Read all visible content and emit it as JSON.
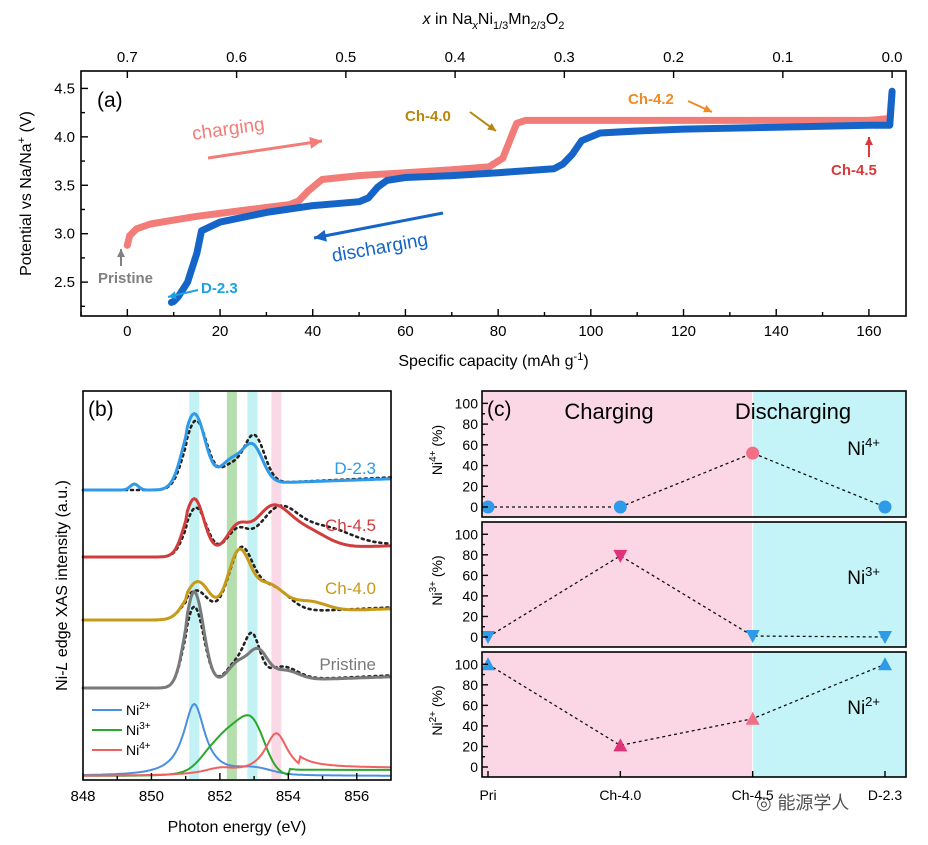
{
  "watermark": "能源学人",
  "chart_data": [
    {
      "panel": "(a)",
      "type": "line",
      "xlabel": "Specific capacity (mAh g",
      "xlabel_sup": "-1",
      "xlabel_end": ")",
      "ylabel": "Potential vs Na/Na",
      "ylabel_sup": "+",
      "ylabel_end": " (V)",
      "top_axis_label": {
        "x": "x",
        "in": " in Na",
        "sx": "x",
        "ni": "Ni",
        "s13": "1/3",
        "mn": "Mn",
        "s23": "2/3",
        "o": "O",
        "s2": "2"
      },
      "xlim": [
        -10,
        168
      ],
      "ylim": [
        2.15,
        4.68
      ],
      "xticks": [
        0,
        20,
        40,
        60,
        80,
        100,
        120,
        140,
        160
      ],
      "xtick_labels": [
        "0",
        "20",
        "40",
        "60",
        "80",
        "100",
        "120",
        "140",
        "160"
      ],
      "yticks": [
        2.5,
        3.0,
        3.5,
        4.0,
        4.5
      ],
      "ytick_labels": [
        "2.5",
        "3.0",
        "3.5",
        "4.0",
        "4.5"
      ],
      "top_xlim": [
        0.7,
        0.0
      ],
      "top_ticks": [
        0.7,
        0.6,
        0.5,
        0.4,
        0.3,
        0.2,
        0.1,
        0.0
      ],
      "top_tick_labels": [
        "0.7",
        "0.6",
        "0.5",
        "0.4",
        "0.3",
        "0.2",
        "0.1",
        "0.0"
      ],
      "series": [
        {
          "name": "charging",
          "color": "#f27c78",
          "x": [
            0,
            0.5,
            2,
            5,
            10,
            15,
            20,
            25,
            30,
            35,
            37,
            39,
            42,
            50,
            60,
            70,
            78,
            81,
            83,
            84,
            86,
            90,
            100,
            110,
            120,
            140,
            160,
            164.5,
            165
          ],
          "y": [
            2.88,
            2.98,
            3.05,
            3.1,
            3.14,
            3.18,
            3.21,
            3.24,
            3.27,
            3.3,
            3.34,
            3.44,
            3.56,
            3.6,
            3.63,
            3.66,
            3.69,
            3.78,
            4.02,
            4.14,
            4.17,
            4.17,
            4.17,
            4.17,
            4.17,
            4.17,
            4.17,
            4.19,
            4.47
          ]
        },
        {
          "name": "discharging",
          "color": "#1565c8",
          "x": [
            165,
            164.5,
            160,
            140,
            120,
            110,
            102,
            98,
            96,
            94,
            92,
            80,
            70,
            60,
            56,
            54,
            52,
            50,
            45,
            40,
            30,
            20,
            16,
            15,
            13,
            11,
            10,
            9.5
          ],
          "y": [
            4.47,
            4.12,
            4.12,
            4.1,
            4.08,
            4.06,
            4.04,
            3.96,
            3.82,
            3.72,
            3.67,
            3.63,
            3.6,
            3.58,
            3.55,
            3.48,
            3.37,
            3.33,
            3.31,
            3.29,
            3.22,
            3.12,
            3.03,
            2.8,
            2.5,
            2.35,
            2.3,
            2.29
          ]
        }
      ],
      "annotations": [
        {
          "text": "charging",
          "color": "#f27c78",
          "kind": "arrow-label"
        },
        {
          "text": "discharging",
          "color": "#1565c8",
          "kind": "arrow-label"
        },
        {
          "text": "Ch-4.0",
          "color": "#b8860b"
        },
        {
          "text": "Ch-4.2",
          "color": "#f08a24"
        },
        {
          "text": "Ch-4.5",
          "color": "#d63a3a"
        },
        {
          "text": "Pristine",
          "color": "#808080"
        },
        {
          "text": "D-2.3",
          "color": "#1ba1e2"
        }
      ]
    },
    {
      "panel": "(b)",
      "type": "line",
      "xlabel": "Photon energy (eV)",
      "ylabel_pre": "Ni-",
      "ylabel_it": "L",
      "ylabel_post": " edge XAS intensity (a.u.)",
      "xlim": [
        848,
        857
      ],
      "xticks": [
        848,
        850,
        852,
        854,
        856
      ],
      "xtick_labels": [
        "848",
        "850",
        "852",
        "854",
        "856"
      ],
      "highlight_bands": [
        {
          "center": 851.25,
          "color": "#b9f0f2"
        },
        {
          "center": 852.35,
          "color": "#a8d8a0"
        },
        {
          "center": 852.95,
          "color": "#b9f0f2"
        },
        {
          "center": 853.65,
          "color": "#f9d2e2"
        }
      ],
      "spectra": [
        {
          "name": "D-2.3",
          "color": "#2f9ae8"
        },
        {
          "name": "Ch-4.5",
          "color": "#d23c3c"
        },
        {
          "name": "Ch-4.0",
          "color": "#c89a1a"
        },
        {
          "name": "Pristine",
          "color": "#7a7a7a"
        }
      ],
      "references": [
        {
          "name": "Ni",
          "sup": "2+",
          "color": "#4a8fe0"
        },
        {
          "name": "Ni",
          "sup": "3+",
          "color": "#2aa82a"
        },
        {
          "name": "Ni",
          "sup": "4+",
          "color": "#f06060"
        }
      ]
    },
    {
      "panel": "(c)",
      "type": "line",
      "categories": [
        "Pri",
        "Ch-4.0",
        "Ch-4.5",
        "D-2.3"
      ],
      "regions": [
        {
          "label": "Charging",
          "color": "#fbd7e6"
        },
        {
          "label": "Discharging",
          "color": "#c4f4f7"
        }
      ],
      "ylim": [
        0,
        100
      ],
      "yticks": [
        0,
        20,
        40,
        60,
        80,
        100
      ],
      "ytick_labels": [
        "0",
        "20",
        "40",
        "60",
        "80",
        "100"
      ],
      "series": [
        {
          "name": "Ni",
          "sup": "4+",
          "ylabel_pct": " (%)",
          "marker": "circle",
          "values": [
            0,
            0,
            52,
            0
          ],
          "colors": [
            "#2f9ae8",
            "#2f9ae8",
            "#f06e86",
            "#2f9ae8"
          ]
        },
        {
          "name": "Ni",
          "sup": "3+",
          "ylabel_pct": " (%)",
          "marker": "triangle-down",
          "values": [
            0,
            79,
            1,
            0
          ],
          "colors": [
            "#2f9ae8",
            "#e0337a",
            "#2f9ae8",
            "#2f9ae8"
          ]
        },
        {
          "name": "Ni",
          "sup": "2+",
          "ylabel_pct": " (%)",
          "marker": "triangle-up",
          "values": [
            100,
            21,
            47,
            100
          ],
          "colors": [
            "#2f9ae8",
            "#e0337a",
            "#f06e86",
            "#2f9ae8"
          ]
        }
      ]
    }
  ]
}
